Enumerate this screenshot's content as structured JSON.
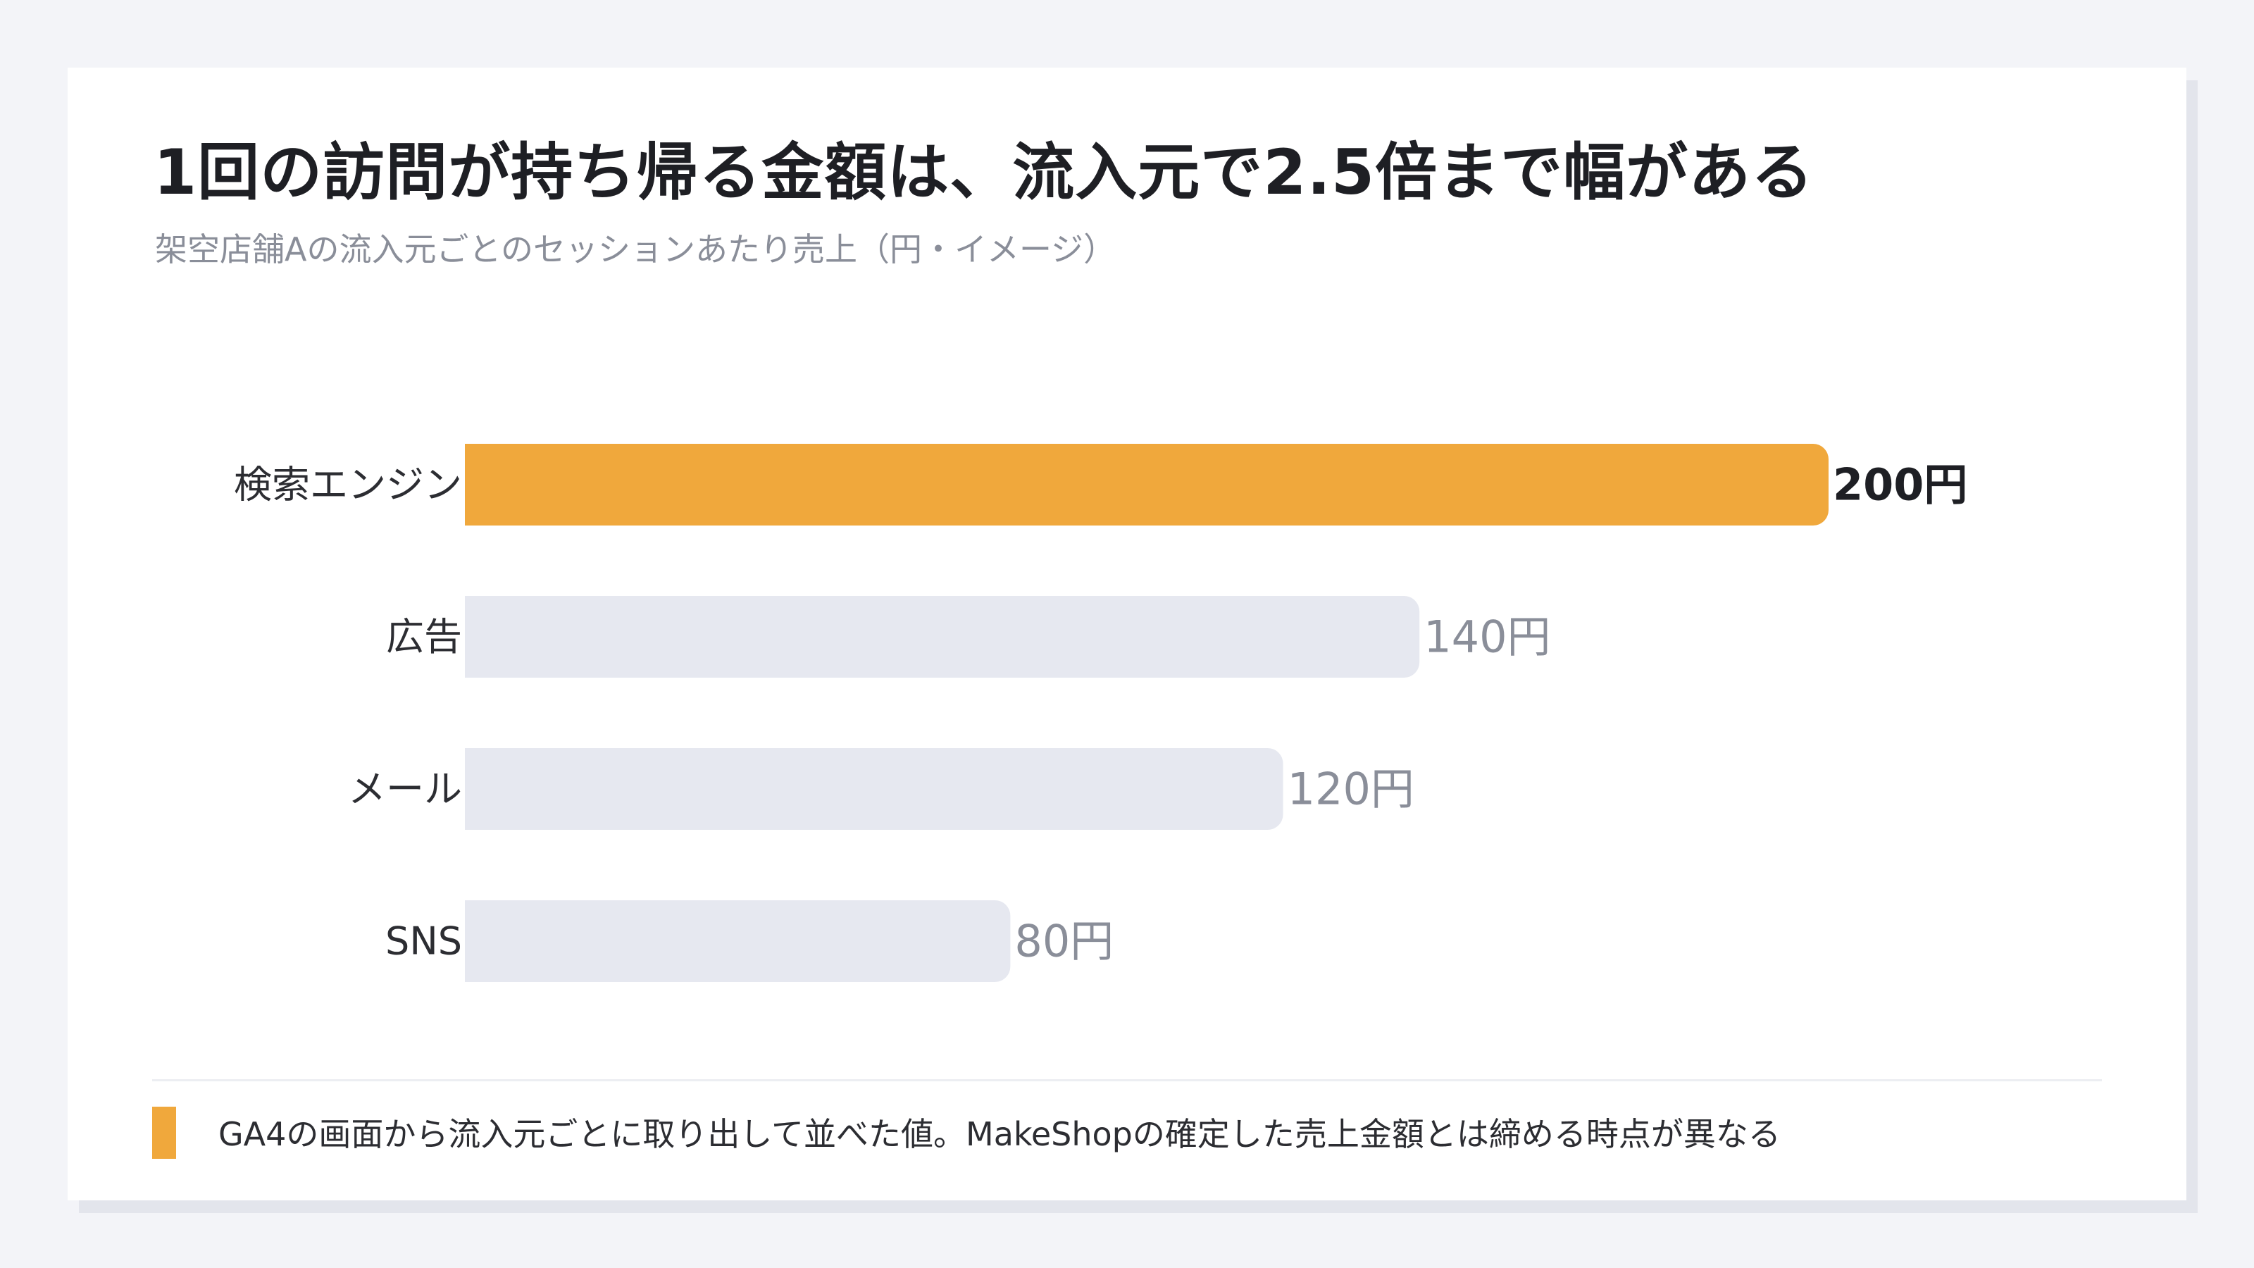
{
  "header": {
    "title": "1回の訪問が持ち帰る金額は、流入元で2.5倍まで幅がある",
    "subtitle": "架空店舗Aの流入元ごとのセッションあたり売上（円・イメージ）"
  },
  "chart_data": {
    "type": "bar",
    "orientation": "horizontal",
    "categories": [
      "検索エンジン",
      "広告",
      "メール",
      "SNS"
    ],
    "values": [
      200,
      140,
      120,
      80
    ],
    "value_labels": [
      "200円",
      "140円",
      "120円",
      "80円"
    ],
    "unit": "円",
    "highlight_index": 0,
    "xlim": [
      0,
      200
    ],
    "grid": false,
    "colors": {
      "highlight": "#f0a83c",
      "default": "#e6e8f0",
      "highlight_label": "#1e1f24",
      "default_label": "#8a8e99",
      "category_label": "#2c2d32"
    }
  },
  "footer": {
    "note": "GA4の画面から流入元ごとに取り出して並べた値。MakeShopの確定した売上金額とは締める時点が異なる",
    "marker_color": "#f0a83c"
  }
}
